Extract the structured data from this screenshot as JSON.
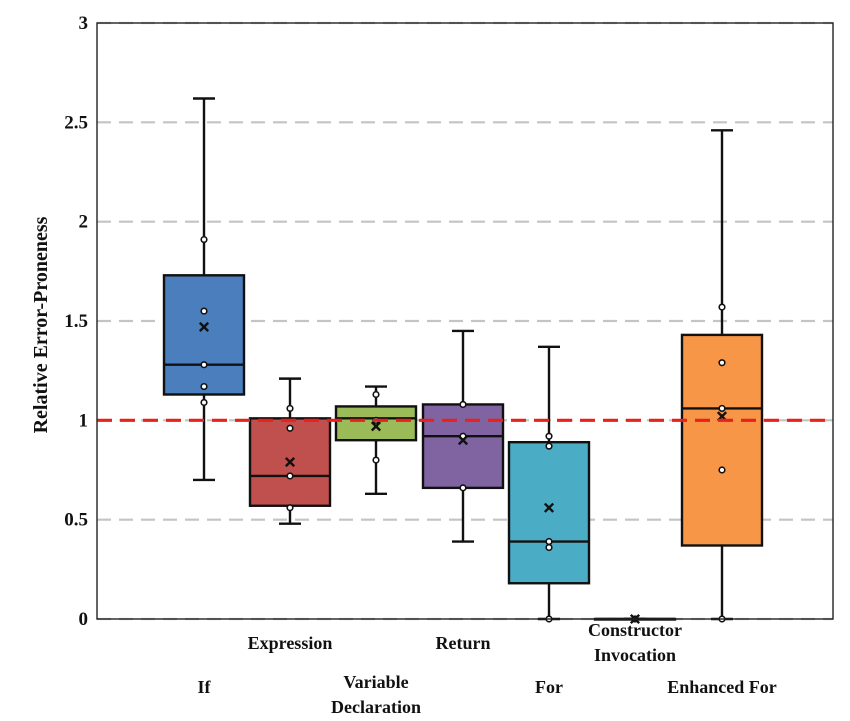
{
  "chart_data": {
    "type": "box",
    "ylabel": "Relative Error-Proneness",
    "xlabel": "",
    "ylim": [
      0,
      3
    ],
    "yticks": [
      {
        "value": 0,
        "label": "0"
      },
      {
        "value": 0.5,
        "label": "0.5"
      },
      {
        "value": 1,
        "label": "1"
      },
      {
        "value": 1.5,
        "label": "1.5"
      },
      {
        "value": 2,
        "label": "2"
      },
      {
        "value": 2.5,
        "label": "2.5"
      },
      {
        "value": 3,
        "label": "3"
      }
    ],
    "grid": "horizontal dashed",
    "reference_line": {
      "value": 1,
      "color": "#e8211c",
      "style": "dashed"
    },
    "categories": [
      {
        "label": [
          "If"
        ],
        "color": "#4a7ebd",
        "whisker_low": 0.7,
        "q1": 1.13,
        "median": 1.28,
        "q3": 1.73,
        "whisker_high": 2.62,
        "mean": 1.47,
        "points": [
          1.09,
          1.17,
          1.28,
          1.55,
          1.91
        ]
      },
      {
        "label": [
          "Expression"
        ],
        "color": "#c0504d",
        "whisker_low": 0.48,
        "q1": 0.57,
        "median": 0.72,
        "q3": 1.01,
        "whisker_high": 1.21,
        "mean": 0.79,
        "points": [
          0.56,
          0.72,
          0.96,
          1.06
        ]
      },
      {
        "label": [
          "Variable",
          "Declaration"
        ],
        "color": "#9bbb59",
        "whisker_low": 0.63,
        "q1": 0.9,
        "median": 1.01,
        "q3": 1.07,
        "whisker_high": 1.17,
        "mean": 0.97,
        "points": [
          0.8,
          1.0,
          1.13
        ]
      },
      {
        "label": [
          "Return"
        ],
        "color": "#8064a2",
        "whisker_low": 0.39,
        "q1": 0.66,
        "median": 0.92,
        "q3": 1.08,
        "whisker_high": 1.45,
        "mean": 0.9,
        "points": [
          0.66,
          0.92,
          1.08
        ]
      },
      {
        "label": [
          "For"
        ],
        "color": "#4bacc6",
        "whisker_low": 0.0,
        "q1": 0.18,
        "median": 0.39,
        "q3": 0.89,
        "whisker_high": 1.37,
        "mean": 0.56,
        "points": [
          0.0,
          0.36,
          0.39,
          0.87,
          0.92
        ]
      },
      {
        "label": [
          "Constructor",
          "Invocation"
        ],
        "color": "#4a7ebd",
        "whisker_low": 0.0,
        "q1": 0.0,
        "median": 0.0,
        "q3": 0.0,
        "whisker_high": 0.0,
        "mean": 0.0,
        "points": [
          0.0
        ]
      },
      {
        "label": [
          "Enhanced For"
        ],
        "color": "#f79646",
        "whisker_low": 0.0,
        "q1": 0.37,
        "median": 1.06,
        "q3": 1.43,
        "whisker_high": 2.46,
        "mean": 1.02,
        "points": [
          0.0,
          0.75,
          1.06,
          1.29,
          1.57
        ]
      }
    ]
  }
}
